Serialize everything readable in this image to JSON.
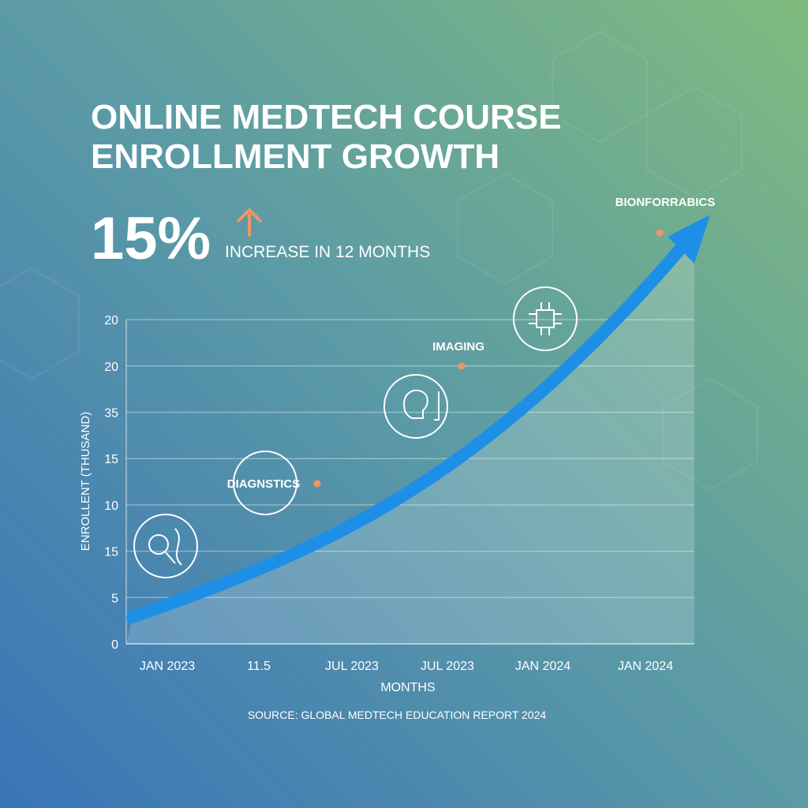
{
  "chart_data": {
    "type": "infographic-line",
    "title": [
      "ONLINE MEDTECH COURSE",
      "ENROLLMENT GROWTH"
    ],
    "headline": "15%",
    "headline_text": "INCREASE IN 12 MONTHS",
    "y_axis_label": "ENROLLENT (THUSAND)",
    "x_axis_label": "MONTHS",
    "source": "SOURCE: GLOBAL MEDTECH EDUCATION REPORT 2024",
    "categories": [
      "JAN 2023",
      "11.5",
      "JUL 2023",
      "JUL 2023",
      "JAN 2024",
      "JAN 2024"
    ],
    "y_axis_labels": [
      0,
      5,
      15,
      10,
      15,
      35,
      20,
      20
    ],
    "annotations": [
      "DIAGNSTICS",
      "IMAGING",
      "BIONFORRABICS"
    ],
    "grid": true,
    "line_color": "#1e8fe6",
    "marker_color": "#f0936a"
  }
}
